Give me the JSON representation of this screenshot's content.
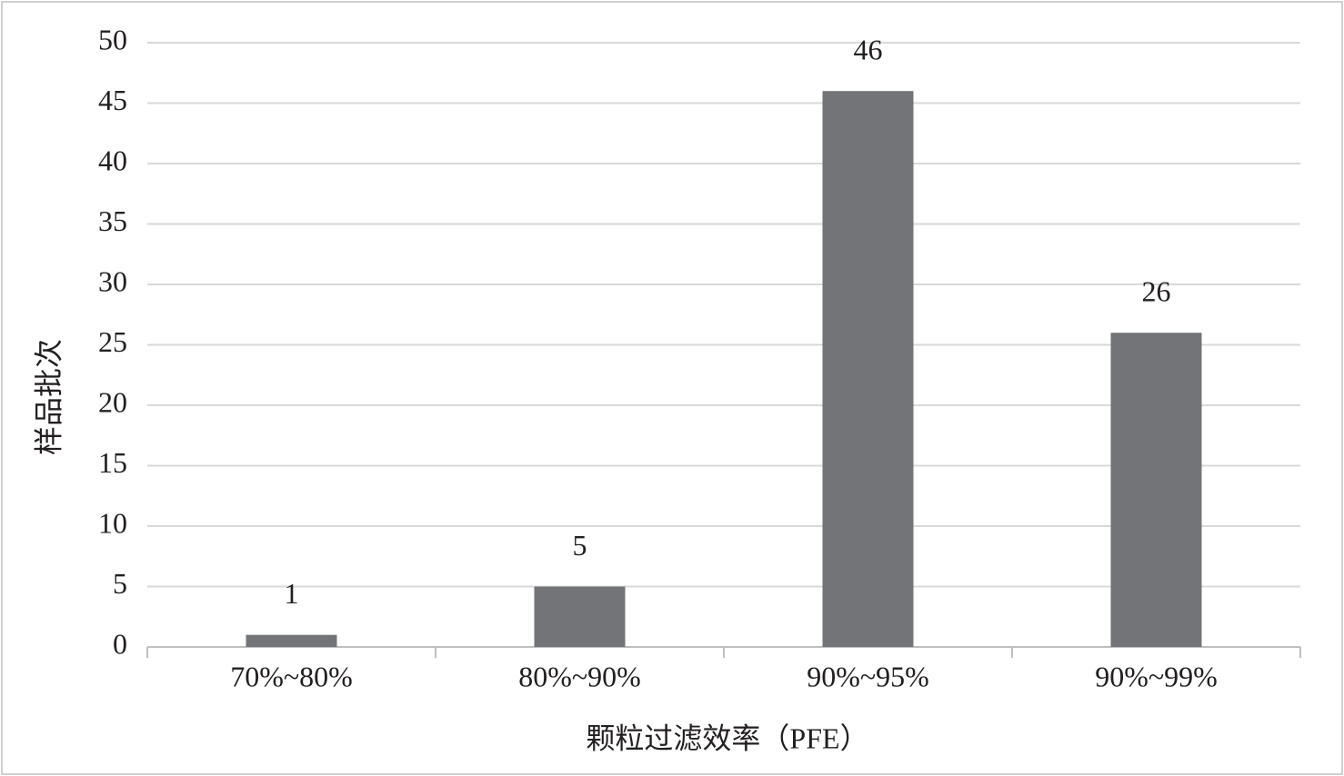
{
  "chart_data": {
    "type": "bar",
    "categories": [
      "70%~80%",
      "80%~90%",
      "90%~95%",
      "90%~99%"
    ],
    "values": [
      1,
      5,
      46,
      26
    ],
    "color": "#737478",
    "xlabel": "颗粒过滤效率（PFE）",
    "ylabel": "样品批次",
    "ylim": [
      0,
      50
    ],
    "yticks": [
      0,
      5,
      10,
      15,
      20,
      25,
      30,
      35,
      40,
      45,
      50
    ],
    "grid": true,
    "data_labels": true
  }
}
